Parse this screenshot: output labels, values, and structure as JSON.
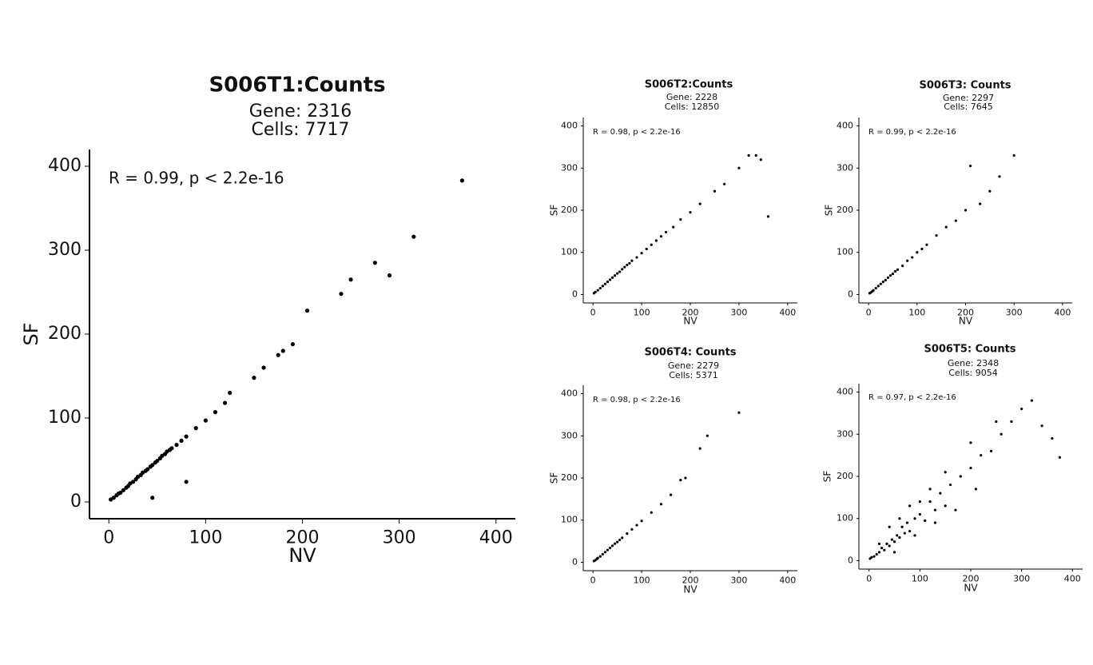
{
  "chart_data": [
    {
      "type": "scatter",
      "title": "S006T1:Counts",
      "subtitle": [
        "Gene: 2316",
        "Cells: 7717"
      ],
      "annotation": "R = 0.99, p < 2.2e-16",
      "xlabel": "NV",
      "ylabel": "SF",
      "color": "#000000",
      "xlim": [
        -20,
        420
      ],
      "ylim": [
        -20,
        420
      ],
      "xticks": [
        0,
        100,
        200,
        300,
        400
      ],
      "yticks": [
        0,
        100,
        200,
        300,
        400
      ],
      "x": [
        2,
        5,
        8,
        10,
        12,
        15,
        18,
        20,
        22,
        25,
        28,
        30,
        33,
        35,
        38,
        40,
        43,
        45,
        48,
        50,
        53,
        55,
        58,
        60,
        63,
        65,
        70,
        75,
        80,
        90,
        100,
        110,
        120,
        125,
        150,
        160,
        175,
        180,
        190,
        205,
        240,
        250,
        275,
        290,
        315,
        365,
        80,
        45
      ],
      "values": [
        3,
        5,
        8,
        10,
        11,
        14,
        17,
        19,
        22,
        24,
        27,
        30,
        32,
        35,
        37,
        39,
        42,
        44,
        47,
        49,
        52,
        55,
        57,
        60,
        62,
        64,
        68,
        73,
        78,
        88,
        97,
        107,
        118,
        130,
        148,
        160,
        175,
        180,
        188,
        228,
        248,
        265,
        285,
        270,
        316,
        383,
        24,
        5
      ]
    },
    {
      "type": "scatter",
      "title": "S006T2:Counts",
      "subtitle": [
        "Gene: 2228",
        "Cells: 12850"
      ],
      "annotation": "R = 0.98, p < 2.2e-16",
      "xlabel": "NV",
      "ylabel": "SF",
      "color": "#000000",
      "xlim": [
        -20,
        420
      ],
      "ylim": [
        -20,
        420
      ],
      "xticks": [
        0,
        100,
        200,
        300,
        400
      ],
      "yticks": [
        0,
        100,
        200,
        300,
        400
      ],
      "x": [
        2,
        5,
        10,
        15,
        20,
        25,
        30,
        35,
        40,
        45,
        50,
        55,
        60,
        65,
        70,
        75,
        80,
        90,
        100,
        110,
        120,
        130,
        140,
        150,
        165,
        180,
        200,
        220,
        250,
        270,
        300,
        320,
        335,
        345,
        360
      ],
      "values": [
        3,
        6,
        10,
        15,
        20,
        25,
        30,
        35,
        40,
        45,
        50,
        54,
        60,
        65,
        70,
        74,
        80,
        88,
        98,
        108,
        118,
        128,
        138,
        148,
        160,
        178,
        195,
        215,
        245,
        262,
        300,
        330,
        330,
        320,
        185
      ]
    },
    {
      "type": "scatter",
      "title": "S006T3:  Counts",
      "subtitle": [
        "Gene: 2297",
        "Cells: 7645"
      ],
      "annotation": "R = 0.99, p < 2.2e-16",
      "xlabel": "NV",
      "ylabel": "SF",
      "color": "#000000",
      "xlim": [
        -20,
        420
      ],
      "ylim": [
        -20,
        420
      ],
      "xticks": [
        0,
        100,
        200,
        300,
        400
      ],
      "yticks": [
        0,
        100,
        200,
        300,
        400
      ],
      "x": [
        2,
        5,
        8,
        10,
        15,
        20,
        25,
        30,
        35,
        40,
        45,
        50,
        55,
        60,
        70,
        80,
        90,
        100,
        110,
        120,
        140,
        160,
        180,
        200,
        210,
        230,
        250,
        270,
        300
      ],
      "values": [
        3,
        5,
        8,
        10,
        15,
        20,
        25,
        30,
        34,
        40,
        45,
        49,
        55,
        59,
        68,
        80,
        88,
        100,
        108,
        118,
        140,
        160,
        175,
        200,
        305,
        215,
        245,
        280,
        330
      ]
    },
    {
      "type": "scatter",
      "title": "S006T4:  Counts",
      "subtitle": [
        "Gene: 2279",
        "Cells: 5371"
      ],
      "annotation": "R = 0.98, p < 2.2e-16",
      "xlabel": "NV",
      "ylabel": "SF",
      "color": "#000000",
      "xlim": [
        -20,
        420
      ],
      "ylim": [
        -20,
        420
      ],
      "xticks": [
        0,
        100,
        200,
        300,
        400
      ],
      "yticks": [
        0,
        100,
        200,
        300,
        400
      ],
      "x": [
        2,
        5,
        8,
        10,
        15,
        20,
        25,
        30,
        35,
        40,
        45,
        50,
        55,
        60,
        70,
        80,
        90,
        100,
        120,
        140,
        160,
        180,
        190,
        220,
        235,
        300
      ],
      "values": [
        3,
        5,
        8,
        10,
        14,
        19,
        24,
        29,
        34,
        39,
        44,
        48,
        53,
        58,
        68,
        78,
        88,
        98,
        118,
        138,
        160,
        195,
        200,
        270,
        300,
        355
      ]
    },
    {
      "type": "scatter",
      "title": "S006T5:  Counts",
      "subtitle": [
        "Gene: 2348",
        "Cells: 9054"
      ],
      "annotation": "R = 0.97, p < 2.2e-16",
      "xlabel": "NV",
      "ylabel": "SF",
      "color": "#000000",
      "xlim": [
        -20,
        420
      ],
      "ylim": [
        -20,
        420
      ],
      "xticks": [
        0,
        100,
        200,
        300,
        400
      ],
      "yticks": [
        0,
        100,
        200,
        300,
        400
      ],
      "x": [
        2,
        5,
        10,
        15,
        20,
        25,
        30,
        35,
        40,
        45,
        50,
        55,
        60,
        65,
        70,
        75,
        80,
        90,
        100,
        110,
        120,
        130,
        140,
        150,
        160,
        180,
        200,
        220,
        240,
        260,
        280,
        300,
        320,
        340,
        360,
        375,
        40,
        60,
        80,
        100,
        120,
        150,
        200,
        250,
        20,
        50,
        90,
        130,
        170,
        210
      ],
      "values": [
        5,
        8,
        10,
        15,
        20,
        30,
        25,
        40,
        35,
        50,
        45,
        60,
        55,
        80,
        65,
        90,
        70,
        100,
        110,
        95,
        140,
        120,
        160,
        130,
        180,
        200,
        220,
        250,
        260,
        300,
        330,
        360,
        380,
        320,
        290,
        245,
        80,
        100,
        130,
        140,
        170,
        210,
        280,
        330,
        40,
        20,
        60,
        90,
        120,
        170
      ]
    }
  ]
}
